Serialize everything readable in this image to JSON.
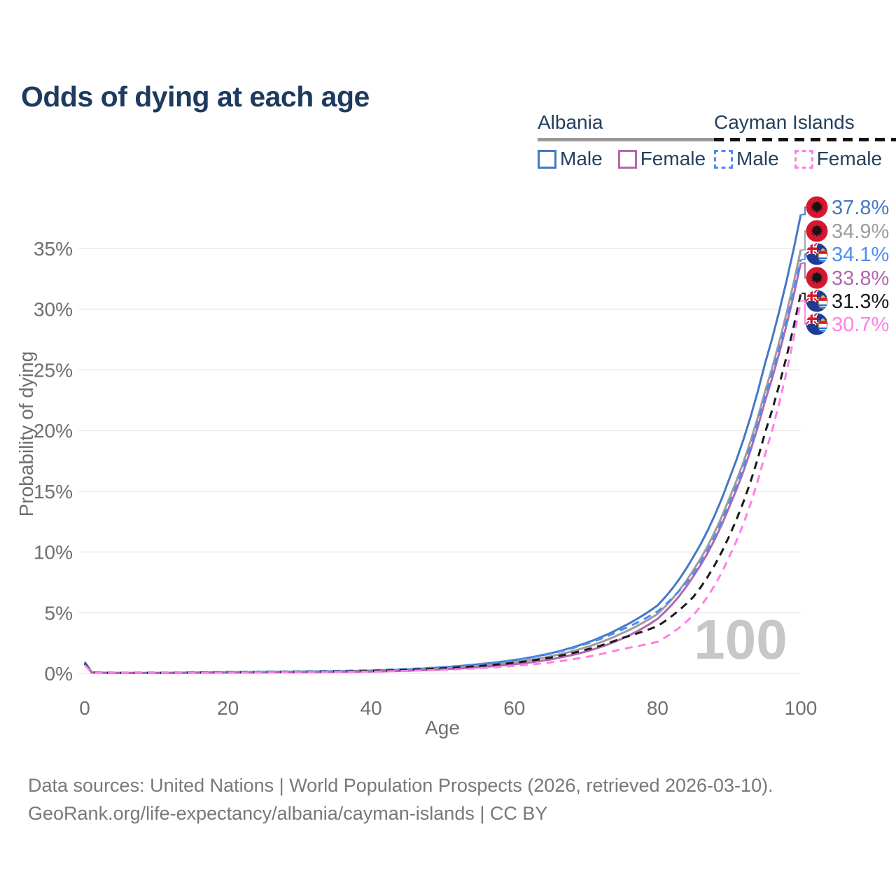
{
  "title": "Odds of dying at each age",
  "legend": {
    "groups": [
      {
        "country": "Albania",
        "line_style": "solid",
        "underline_color": "#9a9a9a",
        "items": [
          {
            "label": "Male",
            "color": "#4478c4",
            "dashed": false
          },
          {
            "label": "Female",
            "color": "#b267b0",
            "dashed": false
          }
        ]
      },
      {
        "country": "Cayman Islands",
        "line_style": "dashed",
        "underline_color": "#141414",
        "items": [
          {
            "label": "Male",
            "color": "#4d8cf5",
            "dashed": true
          },
          {
            "label": "Female",
            "color": "#ff7fe7",
            "dashed": true
          }
        ]
      }
    ]
  },
  "chart_data": {
    "type": "line",
    "title": "Odds of dying at each age",
    "xlabel": "Age",
    "ylabel": "Probability of dying",
    "x_ticks": [
      0,
      20,
      40,
      60,
      80,
      100
    ],
    "y_ticks_percent": [
      0,
      5,
      10,
      15,
      20,
      25,
      30,
      35
    ],
    "xlim": [
      0,
      100
    ],
    "ylim_percent": [
      0,
      38.5
    ],
    "grid": "horizontal",
    "legend_position": "top-right",
    "watermark": "100",
    "x": [
      0,
      1,
      5,
      10,
      15,
      20,
      25,
      30,
      35,
      40,
      45,
      50,
      55,
      60,
      65,
      70,
      75,
      80,
      85,
      90,
      95,
      100
    ],
    "series": [
      {
        "name": "Albania Male",
        "country": "Albania",
        "sex": "Male",
        "color": "#4478c4",
        "dash": "solid",
        "flag": "albania",
        "end_value_percent": 37.8,
        "end_label": "37.8%",
        "values_percent": [
          0.95,
          0.08,
          0.04,
          0.04,
          0.07,
          0.1,
          0.12,
          0.15,
          0.18,
          0.23,
          0.33,
          0.5,
          0.75,
          1.1,
          1.65,
          2.5,
          3.8,
          5.6,
          9.6,
          16.0,
          25.5,
          37.8
        ]
      },
      {
        "name": "Albania Both sexes",
        "country": "Albania",
        "sex": "Both",
        "color": "#9d9d9d",
        "dash": "solid",
        "flag": "albania",
        "end_value_percent": 34.9,
        "end_label": "34.9%",
        "values_percent": [
          0.85,
          0.07,
          0.035,
          0.035,
          0.06,
          0.08,
          0.1,
          0.12,
          0.15,
          0.19,
          0.28,
          0.42,
          0.62,
          0.92,
          1.4,
          2.15,
          3.3,
          4.9,
          8.5,
          14.4,
          23.2,
          34.9
        ]
      },
      {
        "name": "Cayman Islands Male",
        "country": "Cayman Islands",
        "sex": "Male",
        "color": "#4d8cf5",
        "dash": "dashed",
        "flag": "cayman",
        "end_value_percent": 34.1,
        "end_label": "34.1%",
        "values_percent": [
          0.9,
          0.08,
          0.04,
          0.05,
          0.08,
          0.11,
          0.13,
          0.16,
          0.2,
          0.26,
          0.36,
          0.52,
          0.76,
          1.1,
          1.62,
          2.42,
          3.6,
          5.1,
          8.2,
          14.0,
          22.8,
          34.1
        ]
      },
      {
        "name": "Albania Female",
        "country": "Albania",
        "sex": "Female",
        "color": "#b267b0",
        "dash": "solid",
        "flag": "albania",
        "end_value_percent": 33.8,
        "end_label": "33.8%",
        "values_percent": [
          0.75,
          0.06,
          0.03,
          0.03,
          0.05,
          0.06,
          0.08,
          0.09,
          0.12,
          0.15,
          0.22,
          0.34,
          0.5,
          0.75,
          1.15,
          1.8,
          2.85,
          4.5,
          8.0,
          13.7,
          22.4,
          33.8
        ]
      },
      {
        "name": "Cayman Islands Both sexes",
        "country": "Cayman Islands",
        "sex": "Both",
        "color": "#1a1a1a",
        "dash": "dashed",
        "flag": "cayman",
        "end_value_percent": 31.3,
        "end_label": "31.3%",
        "values_percent": [
          0.8,
          0.07,
          0.035,
          0.04,
          0.065,
          0.09,
          0.11,
          0.13,
          0.16,
          0.21,
          0.29,
          0.42,
          0.6,
          0.88,
          1.3,
          1.95,
          2.9,
          3.9,
          6.3,
          11.3,
          19.8,
          31.3
        ]
      },
      {
        "name": "Cayman Islands Female",
        "country": "Cayman Islands",
        "sex": "Female",
        "color": "#ff7fe7",
        "dash": "dashed",
        "flag": "cayman",
        "end_value_percent": 30.7,
        "end_label": "30.7%",
        "values_percent": [
          0.7,
          0.06,
          0.03,
          0.03,
          0.05,
          0.07,
          0.08,
          0.1,
          0.12,
          0.15,
          0.21,
          0.3,
          0.43,
          0.62,
          0.9,
          1.35,
          2.0,
          2.6,
          4.8,
          9.6,
          18.0,
          30.7
        ]
      }
    ],
    "colors": {
      "grid": "#ebebeb",
      "axis_text": "#6f6f6f",
      "watermark": "#c7c7c7",
      "albania_flag_red": "#d5182f",
      "cayman_flag_blue": "#1e3c96"
    }
  },
  "footer": {
    "line1": "Data sources: United Nations | World Population Prospects (2026, retrieved 2026-03-10).",
    "line2": "GeoRank.org/life-expectancy/albania/cayman-islands | CC BY"
  }
}
